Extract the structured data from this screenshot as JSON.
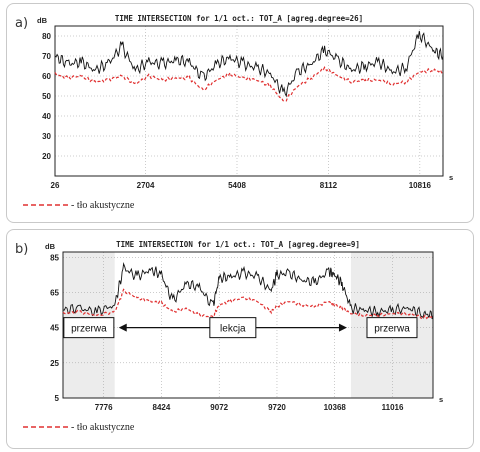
{
  "panel_a": {
    "letter": "a)"
  },
  "panel_b": {
    "letter": "b)"
  },
  "chart_data": [
    {
      "type": "line",
      "title": "TIME INTERSECTION for 1/1 oct.: TOT_A [agreg.degree=26]",
      "ylabel": "dB",
      "xlabel": "s",
      "ylim": [
        10,
        85
      ],
      "xlim": [
        26,
        11500
      ],
      "yticks": [
        "20",
        "30",
        "40",
        "50",
        "60",
        "70",
        "80"
      ],
      "ytick_values": [
        20,
        30,
        40,
        50,
        60,
        70,
        80
      ],
      "xticks": [
        "26",
        "2704",
        "5408",
        "8112",
        "10816"
      ],
      "xtick_values": [
        26,
        2704,
        5408,
        8112,
        10816
      ],
      "grid": true,
      "series": [
        {
          "color": "#111111",
          "style": "solid",
          "x": [
            26,
            400,
            800,
            1200,
            1600,
            2000,
            2400,
            2800,
            3200,
            3600,
            4000,
            4400,
            4800,
            5200,
            5600,
            6000,
            6400,
            6800,
            7200,
            7600,
            8000,
            8400,
            8800,
            9200,
            9600,
            10000,
            10400,
            10800,
            11200,
            11500
          ],
          "values": [
            70,
            66,
            67,
            63,
            66,
            75,
            63,
            67,
            66,
            68,
            67,
            59,
            66,
            69,
            66,
            64,
            61,
            51,
            62,
            66,
            73,
            68,
            63,
            65,
            67,
            62,
            64,
            81,
            73,
            70
          ]
        },
        {
          "name": "tło akustyczne",
          "color": "#e03030",
          "style": "dashed",
          "x": [
            26,
            400,
            800,
            1200,
            1600,
            2000,
            2400,
            2800,
            3200,
            3600,
            4000,
            4400,
            4800,
            5200,
            5600,
            6000,
            6400,
            6800,
            7200,
            7600,
            8000,
            8400,
            8800,
            9200,
            9600,
            10000,
            10400,
            10800,
            11200,
            11500
          ],
          "values": [
            61,
            59,
            60,
            57,
            58,
            60,
            56,
            60,
            58,
            59,
            59,
            53,
            58,
            61,
            59,
            58,
            55,
            47,
            55,
            59,
            64,
            60,
            57,
            58,
            58,
            56,
            57,
            62,
            63,
            62
          ]
        }
      ],
      "legend": {
        "placement": "bottom-left",
        "label": "- tło akustyczne"
      }
    },
    {
      "type": "line",
      "title": "TIME INTERSECTION for 1/1 oct.: TOT_A [agreg.degree=9]",
      "ylabel": "dB",
      "xlabel": "s",
      "ylim": [
        5,
        88
      ],
      "xlim": [
        7320,
        11470
      ],
      "yticks": [
        "5",
        "25",
        "45",
        "65",
        "85"
      ],
      "ytick_values": [
        5,
        25,
        45,
        65,
        85
      ],
      "xticks": [
        "7776",
        "8424",
        "9072",
        "9720",
        "10368",
        "11016"
      ],
      "xtick_values": [
        7776,
        8424,
        9072,
        9720,
        10368,
        11016
      ],
      "grid": true,
      "shaded_regions": [
        {
          "from": 7320,
          "to": 7900,
          "label": "przerwa"
        },
        {
          "from": 10550,
          "to": 11470,
          "label": "przerwa"
        }
      ],
      "annotation": {
        "label": "lekcja",
        "from": 7900,
        "to": 10550
      },
      "series": [
        {
          "color": "#111111",
          "style": "solid",
          "x": [
            7320,
            7500,
            7700,
            7900,
            8000,
            8150,
            8300,
            8424,
            8550,
            8700,
            8850,
            9000,
            9072,
            9200,
            9350,
            9500,
            9650,
            9720,
            9850,
            10000,
            10150,
            10300,
            10368,
            10450,
            10550,
            10700,
            10850,
            11016,
            11200,
            11350,
            11470
          ],
          "values": [
            55,
            56,
            54,
            58,
            79,
            74,
            78,
            75,
            60,
            70,
            68,
            57,
            73,
            74,
            76,
            74,
            66,
            75,
            76,
            72,
            71,
            77,
            75,
            70,
            56,
            55,
            54,
            55,
            56,
            53,
            52
          ]
        },
        {
          "name": "tło akustyczne",
          "color": "#e03030",
          "style": "dashed",
          "x": [
            7320,
            7500,
            7700,
            7900,
            8000,
            8150,
            8300,
            8424,
            8550,
            8700,
            8850,
            9000,
            9072,
            9200,
            9350,
            9500,
            9650,
            9720,
            9850,
            10000,
            10150,
            10300,
            10368,
            10450,
            10550,
            10700,
            10850,
            11016,
            11200,
            11350,
            11470
          ],
          "values": [
            53,
            54,
            52,
            54,
            66,
            62,
            60,
            59,
            54,
            56,
            52,
            51,
            58,
            60,
            62,
            60,
            54,
            57,
            60,
            58,
            57,
            60,
            58,
            56,
            53,
            52,
            52,
            53,
            53,
            51,
            51
          ]
        }
      ],
      "legend": {
        "placement": "bottom-left",
        "label": "- tło akustyczne"
      }
    }
  ]
}
